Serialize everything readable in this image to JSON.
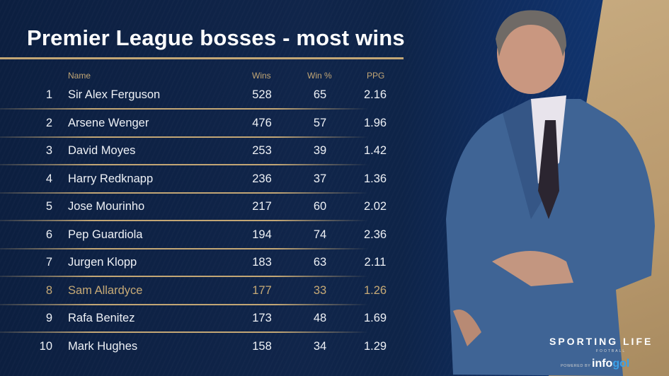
{
  "title": "Premier League bosses - most wins",
  "table": {
    "headers": {
      "name": "Name",
      "wins": "Wins",
      "win_pct": "Win %",
      "ppg": "PPG"
    },
    "rows": [
      {
        "rank": "1",
        "name": "Sir Alex Ferguson",
        "wins": "528",
        "win_pct": "65",
        "ppg": "2.16"
      },
      {
        "rank": "2",
        "name": "Arsene Wenger",
        "wins": "476",
        "win_pct": "57",
        "ppg": "1.96"
      },
      {
        "rank": "3",
        "name": "David Moyes",
        "wins": "253",
        "win_pct": "39",
        "ppg": "1.42"
      },
      {
        "rank": "4",
        "name": "Harry Redknapp",
        "wins": "236",
        "win_pct": "37",
        "ppg": "1.36"
      },
      {
        "rank": "5",
        "name": "Jose Mourinho",
        "wins": "217",
        "win_pct": "60",
        "ppg": "2.02"
      },
      {
        "rank": "6",
        "name": "Pep Guardiola",
        "wins": "194",
        "win_pct": "74",
        "ppg": "2.36"
      },
      {
        "rank": "7",
        "name": "Jurgen Klopp",
        "wins": "183",
        "win_pct": "63",
        "ppg": "2.11"
      },
      {
        "rank": "8",
        "name": "Sam Allardyce",
        "wins": "177",
        "win_pct": "33",
        "ppg": "1.26",
        "highlighted": true
      },
      {
        "rank": "9",
        "name": "Rafa Benitez",
        "wins": "173",
        "win_pct": "48",
        "ppg": "1.69"
      },
      {
        "rank": "10",
        "name": "Mark Hughes",
        "wins": "158",
        "win_pct": "34",
        "ppg": "1.29"
      }
    ]
  },
  "branding": {
    "logo": "SPORTING LIFE",
    "logo_sub": "FOOTBALL",
    "powered_by": "POWERED BY",
    "partner_a": "info",
    "partner_b": "gol"
  },
  "colors": {
    "background": "#0d2244",
    "accent_gold": "#c2a675",
    "highlight_text": "#c7aa76",
    "text": "#eef1f6"
  },
  "photo": {
    "subject": "manager-photo"
  }
}
